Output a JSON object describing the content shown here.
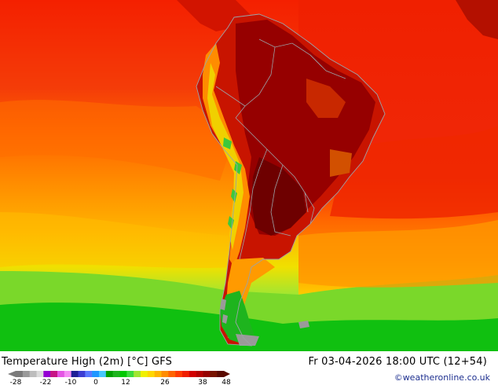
{
  "title": "Temperature High (2m) [°C] GFS",
  "valid_time": "Fr 03-04-2026 18:00 UTC (12+54)",
  "credit": "©weatheronline.co.uk",
  "legend": {
    "tick_labels": [
      "-28",
      "-22",
      "-10",
      "0",
      "12",
      "26",
      "38",
      "48"
    ],
    "colors": [
      "#7a7a7a",
      "#9a9a9a",
      "#bdbdbd",
      "#dcdcdc",
      "#9400d3",
      "#c71585",
      "#e455e4",
      "#f48cf4",
      "#1e1e96",
      "#3c3cd2",
      "#5a78ff",
      "#1e96ff",
      "#46c8ff",
      "#00a000",
      "#1eb41e",
      "#00c800",
      "#3cdc3c",
      "#a0e632",
      "#f0f000",
      "#ffd700",
      "#ffb400",
      "#ff8c00",
      "#ff6400",
      "#ff3c00",
      "#f01e00",
      "#d20000",
      "#b40000",
      "#960000",
      "#781400",
      "#5a0a00"
    ]
  },
  "map_colors": {
    "ocean_far": "#ff3a10",
    "ocean_mid": "#f84808",
    "ocean_south": "#ff8c00",
    "cool": "#ffb400",
    "green": "#1ec81e",
    "lime": "#a0e632",
    "hot": "#c81400",
    "very_hot": "#8c0000",
    "extreme": "#6e0000",
    "border": "#9ca3a8"
  }
}
